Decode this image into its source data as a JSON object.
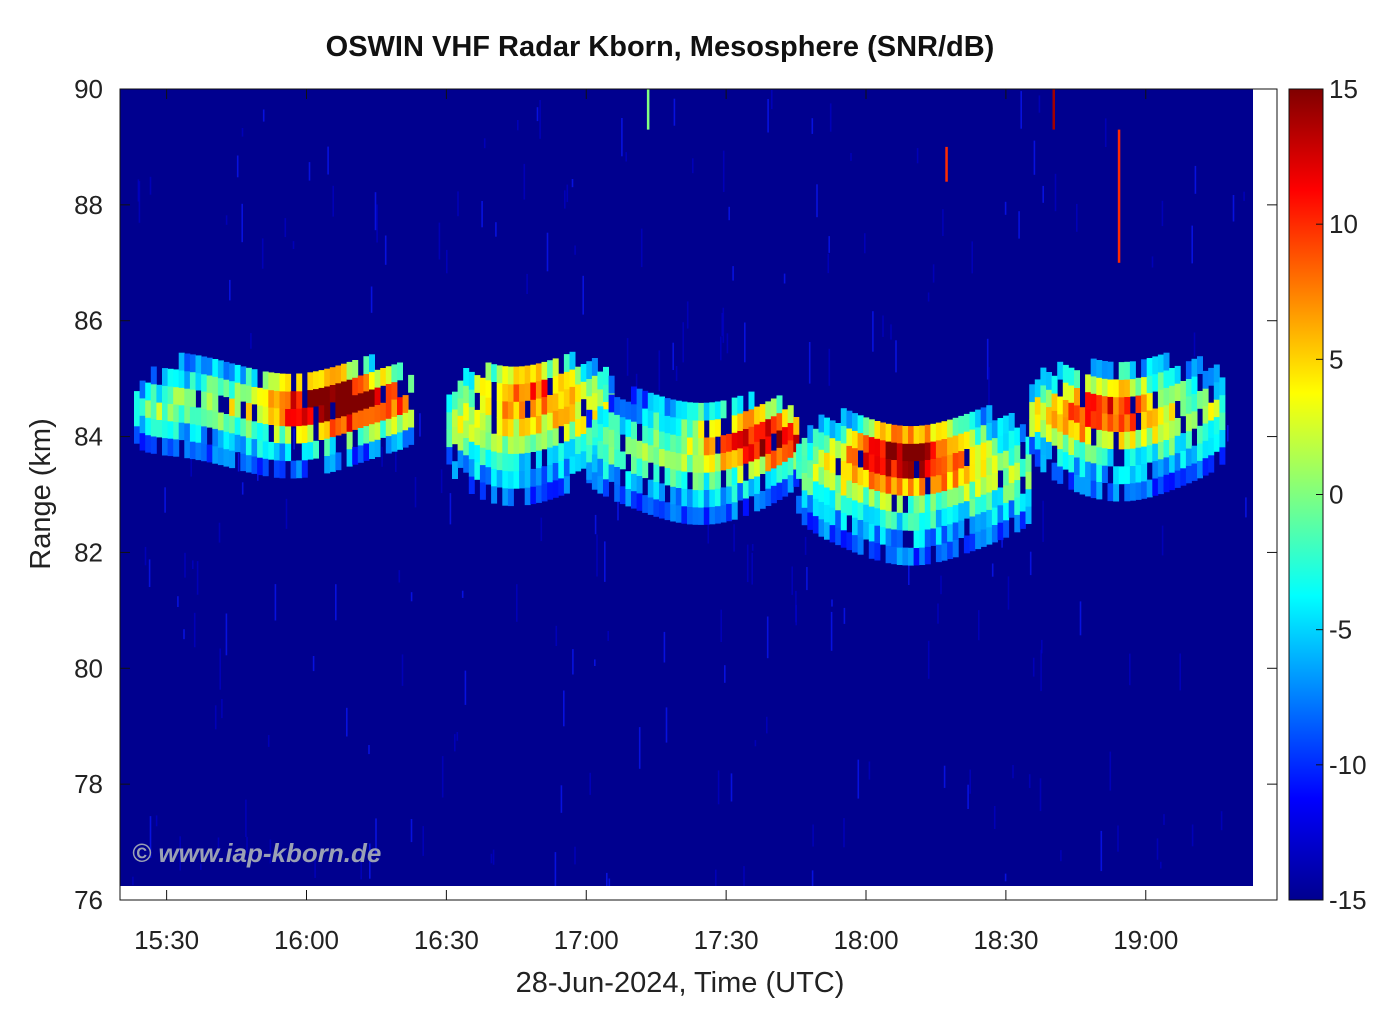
{
  "chart_data": {
    "type": "heatmap",
    "title": "OSWIN VHF Radar Kborn, Mesosphere (SNR/dB)",
    "xlabel": "28-Jun-2024, Time (UTC)",
    "ylabel": "Range (km)",
    "x_unit": "time (HH:MM UTC)",
    "xlim": [
      "15:20",
      "19:23"
    ],
    "ylim": [
      76,
      90
    ],
    "x_ticks": [
      "15:30",
      "16:00",
      "16:30",
      "17:00",
      "17:30",
      "18:00",
      "18:30",
      "19:00"
    ],
    "y_ticks": [
      90,
      88,
      86,
      84,
      82,
      80,
      78,
      76
    ],
    "colorbar": {
      "colormap": "jet",
      "range": [
        -15,
        15
      ],
      "ticks": [
        15,
        10,
        5,
        0,
        -5,
        -10,
        -15
      ],
      "background_value": -15
    },
    "echo_layers": [
      {
        "t_start": "15:23",
        "t_end": "16:23",
        "range_bottom_km": 83.4,
        "range_top_km": 85.2,
        "peak_snr_db": 15,
        "peak_time": "16:06",
        "peak_range_km": 84.5
      },
      {
        "t_start": "16:30",
        "t_end": "17:05",
        "range_bottom_km": 82.9,
        "range_top_km": 85.2,
        "peak_snr_db": 9,
        "peak_time": "16:47",
        "peak_range_km": 84.7
      },
      {
        "t_start": "17:00",
        "t_end": "17:45",
        "range_bottom_km": 82.6,
        "range_top_km": 84.6,
        "peak_snr_db": 10,
        "peak_time": "17:38",
        "peak_range_km": 83.9
      },
      {
        "t_start": "17:45",
        "t_end": "18:35",
        "range_bottom_km": 81.9,
        "range_top_km": 84.3,
        "peak_snr_db": 14,
        "peak_time": "18:08",
        "peak_range_km": 83.6
      },
      {
        "t_start": "18:35",
        "t_end": "19:17",
        "range_bottom_km": 83.0,
        "range_top_km": 85.2,
        "peak_snr_db": 8,
        "peak_time": "18:50",
        "peak_range_km": 84.4
      }
    ],
    "upper_range_spikes": [
      {
        "time": "17:13",
        "range_bottom_km": 89.3,
        "range_top_km": 90.0,
        "snr_db": 0
      },
      {
        "time": "18:17",
        "range_bottom_km": 88.4,
        "range_top_km": 89.0,
        "snr_db": 10
      },
      {
        "time": "18:40",
        "range_bottom_km": 89.3,
        "range_top_km": 90.0,
        "snr_db": 14
      },
      {
        "time": "18:54",
        "range_bottom_km": 87.0,
        "range_top_km": 89.3,
        "snr_db": 10
      }
    ],
    "legend": "none",
    "grid": false
  },
  "watermark": "© www.iap-kborn.de"
}
